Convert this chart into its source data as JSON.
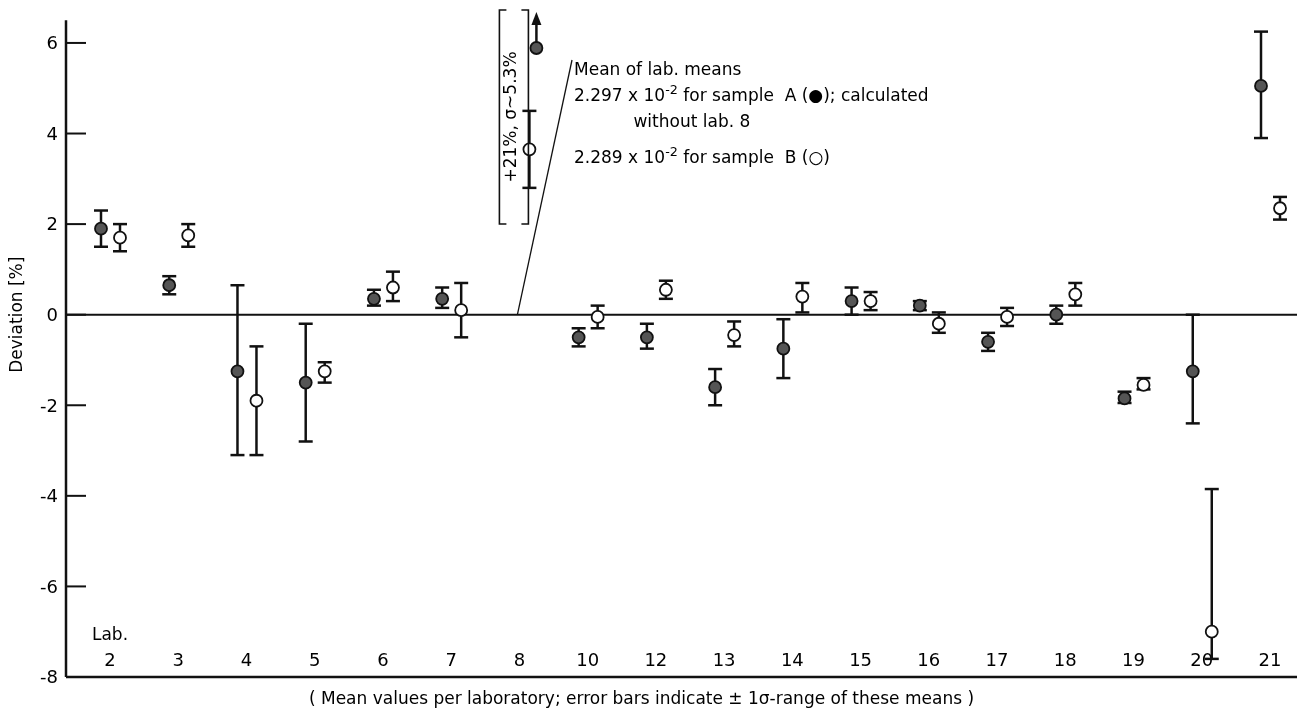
{
  "chart_data": {
    "type": "scatter",
    "ylabel": "Deviation [%]",
    "xlabel": "( Mean values per laboratory; error bars indicate ± 1σ-range of these means )",
    "categories": [
      "2",
      "3",
      "4",
      "5",
      "6",
      "7",
      "8",
      "10",
      "12",
      "13",
      "14",
      "15",
      "16",
      "17",
      "18",
      "19",
      "20",
      "21"
    ],
    "ylim": [
      -8,
      6.5
    ],
    "yticks": [
      -8,
      -6,
      -4,
      -2,
      0,
      2,
      4,
      6
    ],
    "grid": false,
    "series": [
      {
        "color": "#555555",
        "marker": "circle",
        "values": [
          1.9,
          0.65,
          -1.25,
          -1.5,
          0.35,
          0.35,
          null,
          -0.5,
          -0.5,
          -1.6,
          -0.75,
          0.3,
          0.2,
          -0.6,
          0.0,
          -1.85,
          -1.25,
          5.05
        ],
        "errors": [
          [
            1.5,
            2.3
          ],
          [
            0.45,
            0.85
          ],
          [
            -3.1,
            0.65
          ],
          [
            -2.8,
            -0.2
          ],
          [
            0.2,
            0.55
          ],
          [
            0.15,
            0.6
          ],
          null,
          [
            -0.7,
            -0.3
          ],
          [
            -0.75,
            -0.2
          ],
          [
            -2.0,
            -1.2
          ],
          [
            -1.4,
            -0.1
          ],
          [
            0.0,
            0.6
          ],
          [
            0.1,
            0.3
          ],
          [
            -0.8,
            -0.4
          ],
          [
            -0.2,
            0.2
          ],
          [
            -1.95,
            -1.7
          ],
          [
            -2.4,
            0.0
          ],
          [
            3.9,
            6.25
          ]
        ]
      },
      {
        "color": "#ffffff",
        "marker": "circle",
        "values": [
          1.7,
          1.75,
          -1.9,
          -1.25,
          0.6,
          0.1,
          3.65,
          -0.05,
          0.55,
          -0.45,
          0.4,
          0.3,
          -0.2,
          -0.05,
          0.45,
          -1.55,
          -7.0,
          2.35
        ],
        "errors": [
          [
            1.4,
            2.0
          ],
          [
            1.5,
            2.0
          ],
          [
            -3.1,
            -0.7
          ],
          [
            -1.5,
            -1.05
          ],
          [
            0.3,
            0.95
          ],
          [
            -0.5,
            0.7
          ],
          [
            2.8,
            4.5
          ],
          [
            -0.3,
            0.2
          ],
          [
            0.35,
            0.75
          ],
          [
            -0.7,
            -0.15
          ],
          [
            0.05,
            0.7
          ],
          [
            0.1,
            0.5
          ],
          [
            -0.4,
            0.05
          ],
          [
            -0.25,
            0.15
          ],
          [
            0.2,
            0.7
          ],
          [
            -1.65,
            -1.4
          ],
          [
            -7.6,
            -3.85
          ],
          [
            2.1,
            2.6
          ]
        ]
      }
    ],
    "ref_lines": [
      {
        "axis": "y",
        "value": 0,
        "label": "Mean of lab. means\n2.297 x 10$^{-2}$ for sample  A (●); calculated\n           without lab. 8\n2.289 x 10$^{-2}$ for sample  B (○)"
      }
    ],
    "annotations": [
      "Lab.",
      "+21%, σ~5.3%"
    ]
  }
}
